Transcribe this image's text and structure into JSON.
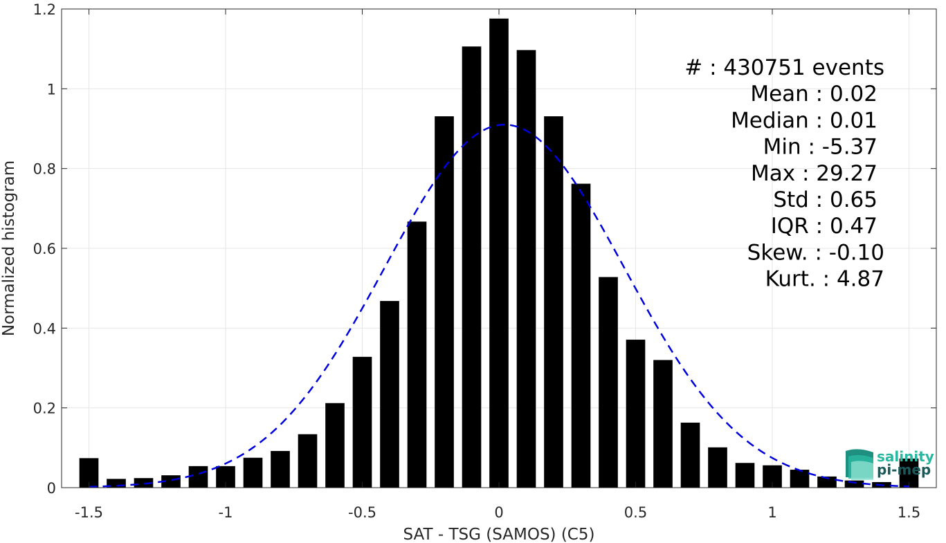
{
  "chart_data": {
    "type": "bar",
    "title": "",
    "xlabel": "SAT - TSG (SAMOS) (C5)",
    "ylabel": "Normalized histogram",
    "xlim": [
      -1.6,
      1.6
    ],
    "ylim": [
      0,
      1.2
    ],
    "xticks": [
      "-1.5",
      "-1",
      "-0.5",
      "0",
      "0.5",
      "1",
      "1.5"
    ],
    "xtick_values": [
      -1.5,
      -1,
      -0.5,
      0,
      0.5,
      1,
      1.5
    ],
    "yticks": [
      "0",
      "0.2",
      "0.4",
      "0.6",
      "0.8",
      "1",
      "1.2"
    ],
    "ytick_values": [
      0,
      0.2,
      0.4,
      0.6,
      0.8,
      1.0,
      1.2
    ],
    "grid": true,
    "bar_color": "#000000",
    "fit_color": "#0000dd",
    "bars": {
      "x": [
        -1.5,
        -1.4,
        -1.3,
        -1.2,
        -1.1,
        -1.0,
        -0.9,
        -0.8,
        -0.7,
        -0.6,
        -0.5,
        -0.4,
        -0.3,
        -0.2,
        -0.1,
        0.0,
        0.1,
        0.2,
        0.3,
        0.4,
        0.5,
        0.6,
        0.7,
        0.8,
        0.9,
        1.0,
        1.1,
        1.2,
        1.3,
        1.4,
        1.5
      ],
      "values": [
        0.074,
        0.022,
        0.024,
        0.031,
        0.054,
        0.054,
        0.075,
        0.092,
        0.134,
        0.212,
        0.328,
        0.468,
        0.667,
        0.931,
        1.106,
        1.176,
        1.097,
        0.931,
        0.762,
        0.528,
        0.371,
        0.32,
        0.163,
        0.101,
        0.062,
        0.056,
        0.045,
        0.028,
        0.018,
        0.014,
        0.073
      ]
    },
    "fit_curve": {
      "style": "dashed",
      "mean": 0.02,
      "std": 0.438,
      "peak": 0.91
    },
    "stats": [
      "#  : 430751 events",
      "Mean : 0.02",
      "Median : 0.01",
      "Min : -5.37",
      "Max : 29.27",
      "Std : 0.65",
      "IQR : 0.47",
      "Skew. : -0.10",
      "Kurt. : 4.87"
    ]
  },
  "logo": {
    "line1": "salinity",
    "line2": "pi-mep",
    "color1": "#2ab7a0",
    "color2": "#1a5a5a"
  }
}
